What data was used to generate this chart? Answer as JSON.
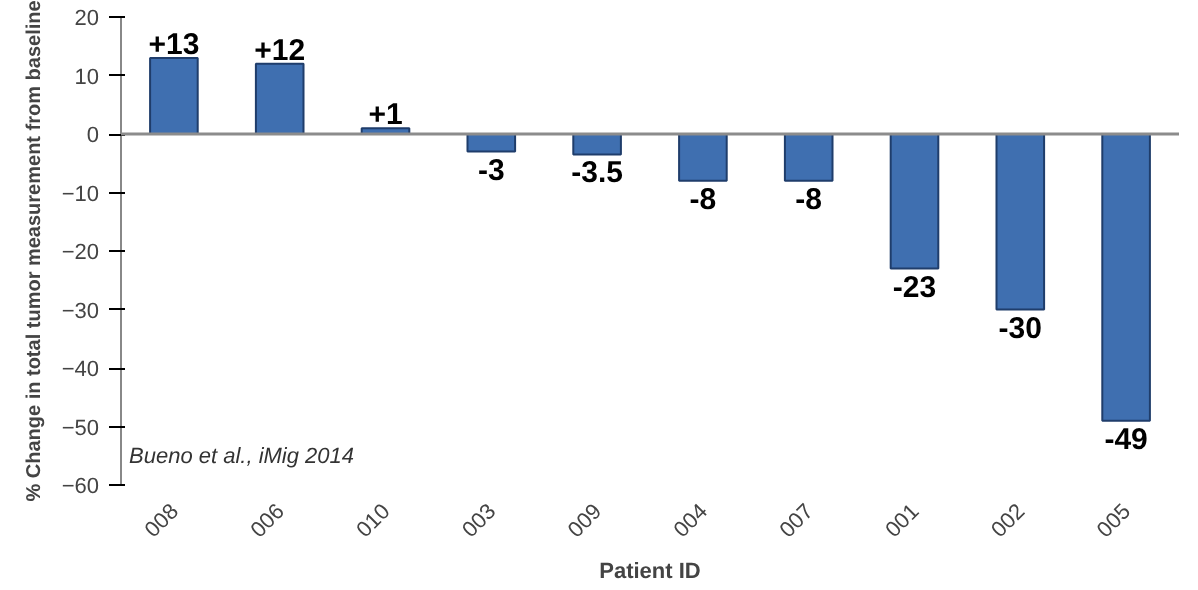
{
  "chart_data": {
    "type": "bar",
    "xlabel": "Patient ID",
    "ylabel": "% Change in total tumor measurement from baseline",
    "categories": [
      "008",
      "006",
      "010",
      "003",
      "009",
      "004",
      "007",
      "001",
      "002",
      "005"
    ],
    "values": [
      13,
      12,
      1,
      -3,
      -3.5,
      -8,
      -8,
      -23,
      -30,
      -49
    ],
    "value_labels": [
      "+13",
      "+12",
      "+1",
      "-3",
      "-3.5",
      "-8",
      "-8",
      "-23",
      "-30",
      "-49"
    ],
    "color": "#3f6fb0",
    "ylim": [
      -60,
      20
    ],
    "yticks": [
      -60,
      -50,
      -40,
      -30,
      -20,
      -10,
      0,
      10,
      20
    ],
    "grid": false,
    "ref_lines": [
      {
        "axis": "y",
        "value": 0,
        "color": "#8c8c8c"
      }
    ],
    "annotations": [
      "Bueno et al., iMig 2014"
    ]
  }
}
